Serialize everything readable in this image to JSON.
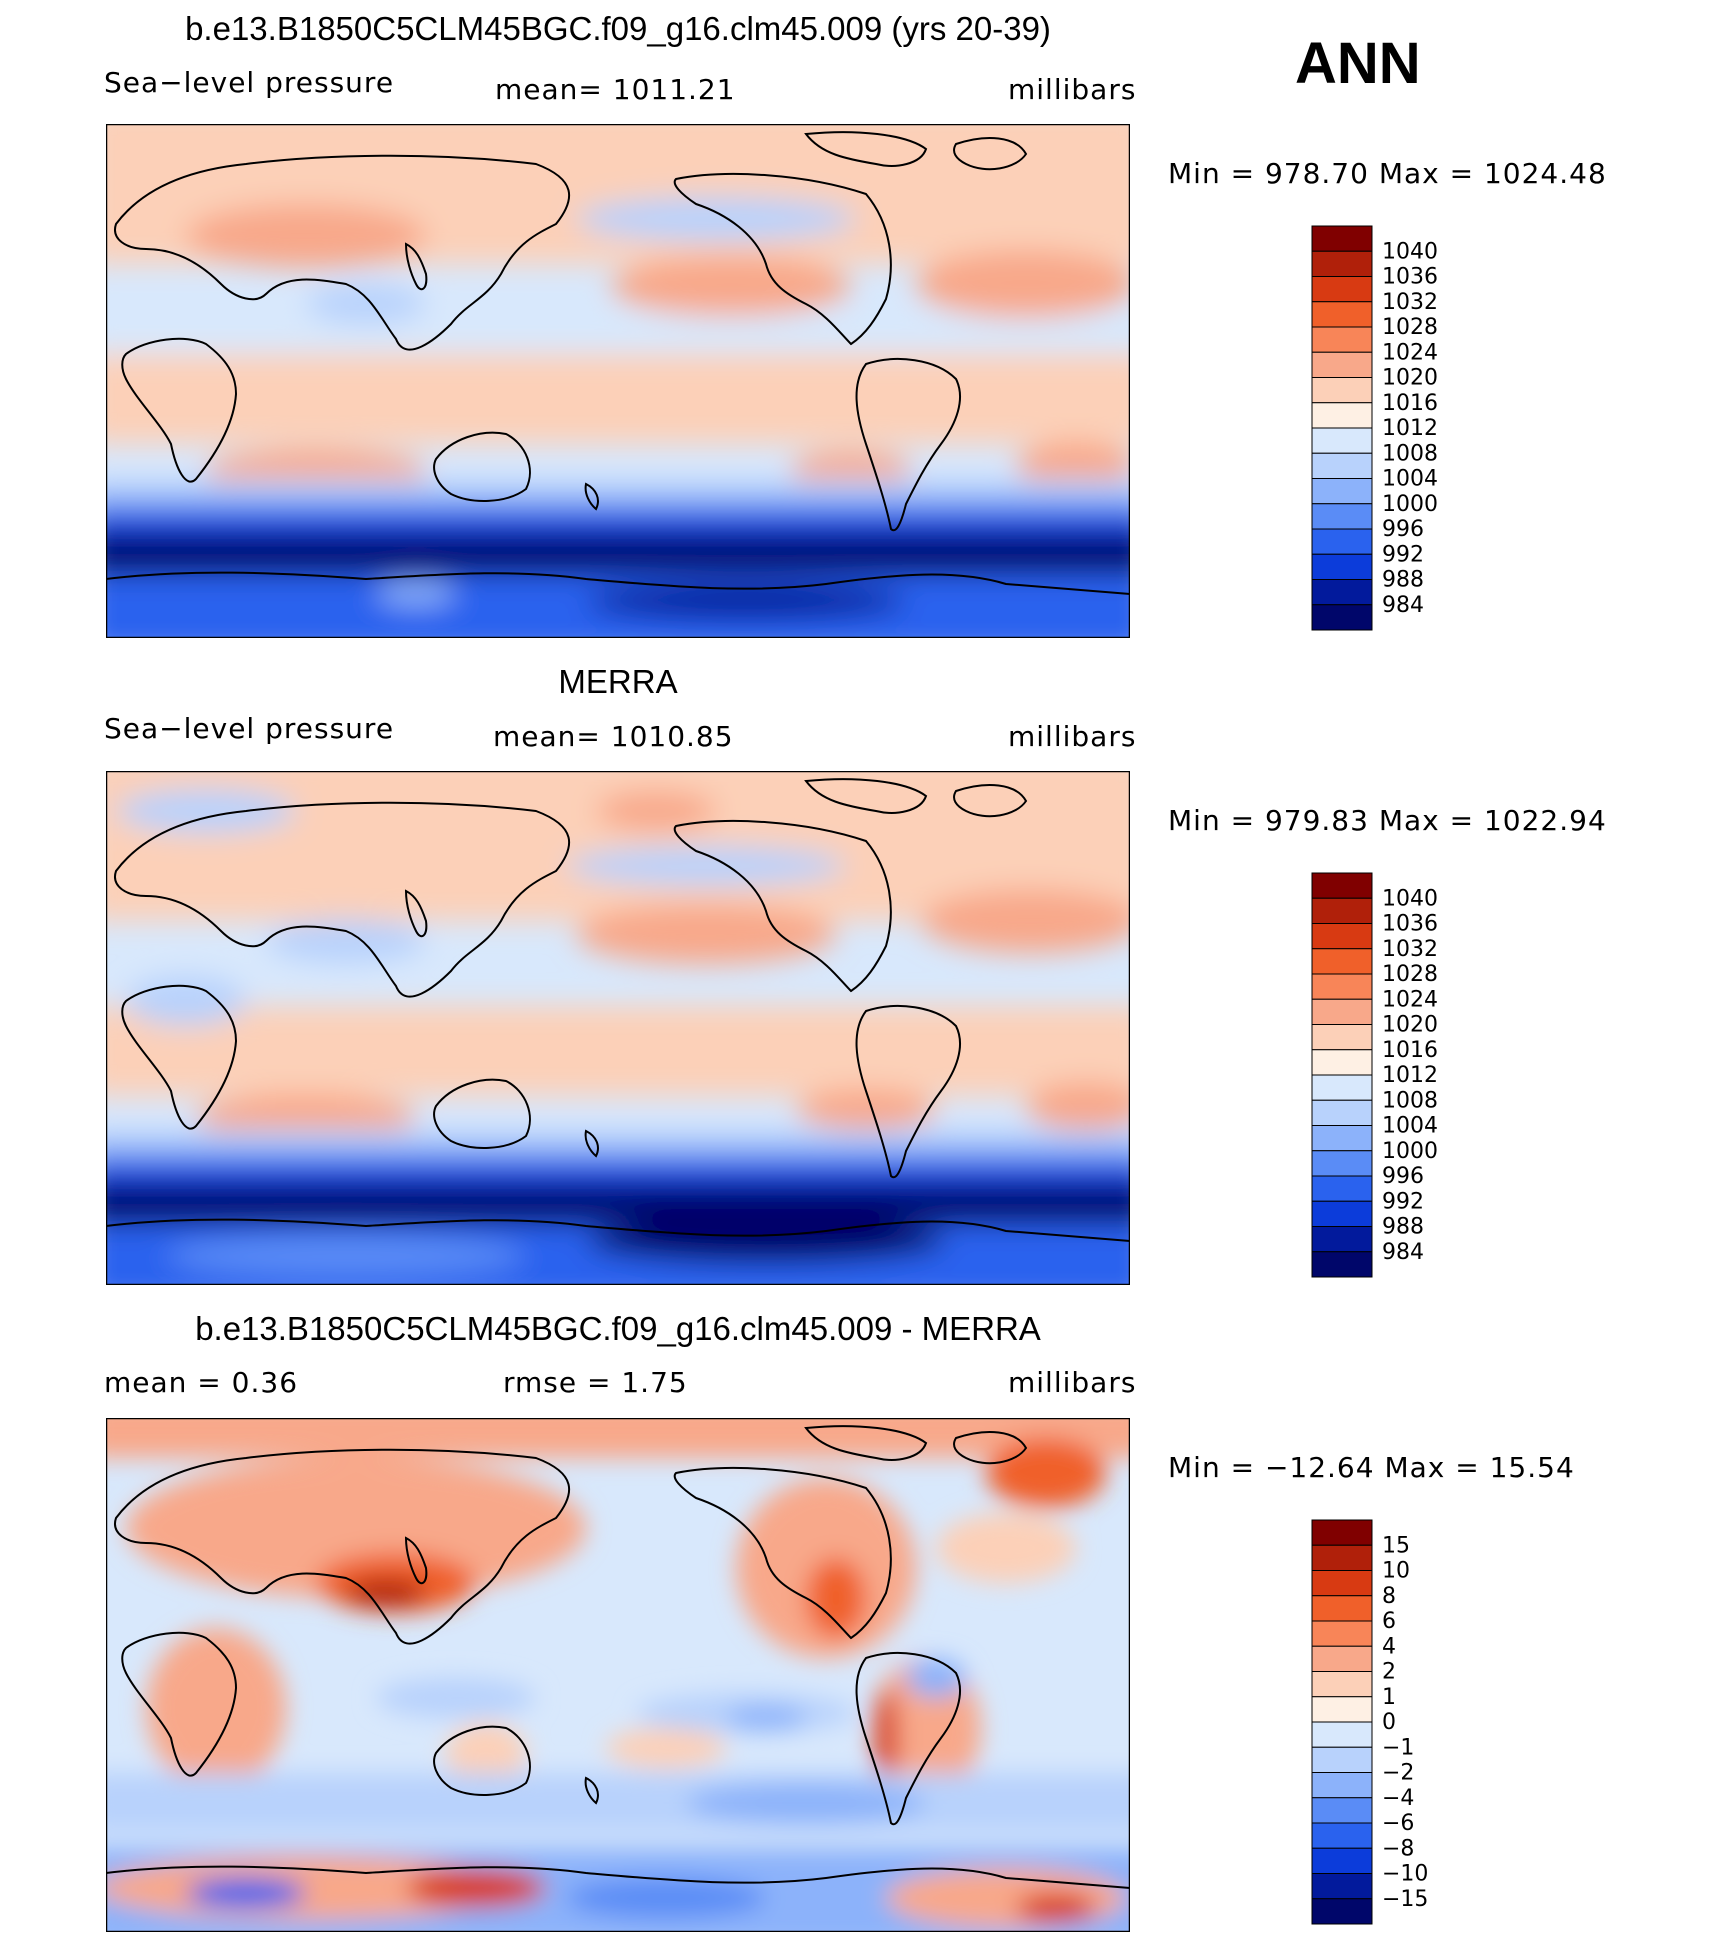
{
  "season": "ANN",
  "panels": [
    {
      "title": "b.e13.B1850C5CLM45BGC.f09_g16.clm45.009 (yrs 20-39)",
      "left_label": "Sea−level pressure",
      "center_label": "mean=  1011.21",
      "units": "millibars",
      "minmax": "Min  =  978.70  Max  =  1024.48"
    },
    {
      "title": "MERRA",
      "left_label": "Sea−level pressure",
      "center_label": "mean=  1010.85",
      "units": "millibars",
      "minmax": "Min  =  979.83  Max  =  1022.94"
    },
    {
      "title": "b.e13.B1850C5CLM45BGC.f09_g16.clm45.009 - MERRA",
      "left_label": "mean  =     0.36",
      "center_label": "rmse  =     1.75",
      "units": "millibars",
      "minmax": "Min  =  −12.64  Max  =    15.54"
    }
  ],
  "colorbars": [
    {
      "labels": [
        "1040",
        "1036",
        "1032",
        "1028",
        "1024",
        "1020",
        "1016",
        "1012",
        "1008",
        "1004",
        "1000",
        "996",
        "992",
        "988",
        "984"
      ],
      "colors": [
        "#800000",
        "#b0200a",
        "#d83a12",
        "#f0602a",
        "#f88558",
        "#f8a88a",
        "#fcd0b8",
        "#fef0e4",
        "#d8e8fc",
        "#b8d2fc",
        "#8cb2fa",
        "#5a8cf6",
        "#2a62ee",
        "#0c3cda",
        "#021a9c",
        "#00066a"
      ]
    },
    {
      "labels": [
        "1040",
        "1036",
        "1032",
        "1028",
        "1024",
        "1020",
        "1016",
        "1012",
        "1008",
        "1004",
        "1000",
        "996",
        "992",
        "988",
        "984"
      ],
      "colors": [
        "#800000",
        "#b0200a",
        "#d83a12",
        "#f0602a",
        "#f88558",
        "#f8a88a",
        "#fcd0b8",
        "#fef0e4",
        "#d8e8fc",
        "#b8d2fc",
        "#8cb2fa",
        "#5a8cf6",
        "#2a62ee",
        "#0c3cda",
        "#021a9c",
        "#00066a"
      ]
    },
    {
      "labels": [
        "15",
        "10",
        "8",
        "6",
        "4",
        "2",
        "1",
        "0",
        "−1",
        "−2",
        "−4",
        "−6",
        "−8",
        "−10",
        "−15"
      ],
      "colors": [
        "#800000",
        "#b0200a",
        "#d83a12",
        "#f0602a",
        "#f88558",
        "#f8a88a",
        "#fcd0b8",
        "#fef0e4",
        "#d8e8fc",
        "#b8d2fc",
        "#8cb2fa",
        "#5a8cf6",
        "#2a62ee",
        "#0c3cda",
        "#021a9c",
        "#00066a"
      ]
    }
  ],
  "chart_data": [
    {
      "type": "heatmap",
      "title": "b.e13.B1850C5CLM45BGC.f09_g16.clm45.009 (yrs 20-39)",
      "variable": "Sea−level pressure",
      "units": "millibars",
      "mean": 1011.21,
      "min": 978.7,
      "max": 1024.48,
      "contour_levels": [
        984,
        988,
        992,
        996,
        1000,
        1004,
        1008,
        1012,
        1016,
        1020,
        1024,
        1028,
        1032,
        1036,
        1040
      ]
    },
    {
      "type": "heatmap",
      "title": "MERRA",
      "variable": "Sea−level pressure",
      "units": "millibars",
      "mean": 1010.85,
      "min": 979.83,
      "max": 1022.94,
      "contour_levels": [
        984,
        988,
        992,
        996,
        1000,
        1004,
        1008,
        1012,
        1016,
        1020,
        1024,
        1028,
        1032,
        1036,
        1040
      ]
    },
    {
      "type": "heatmap",
      "title": "b.e13.B1850C5CLM45BGC.f09_g16.clm45.009 - MERRA",
      "units": "millibars",
      "mean": 0.36,
      "rmse": 1.75,
      "min": -12.64,
      "max": 15.54,
      "contour_levels": [
        -15,
        -10,
        -8,
        -6,
        -4,
        -2,
        -1,
        0,
        1,
        2,
        4,
        6,
        8,
        10,
        15
      ]
    }
  ]
}
